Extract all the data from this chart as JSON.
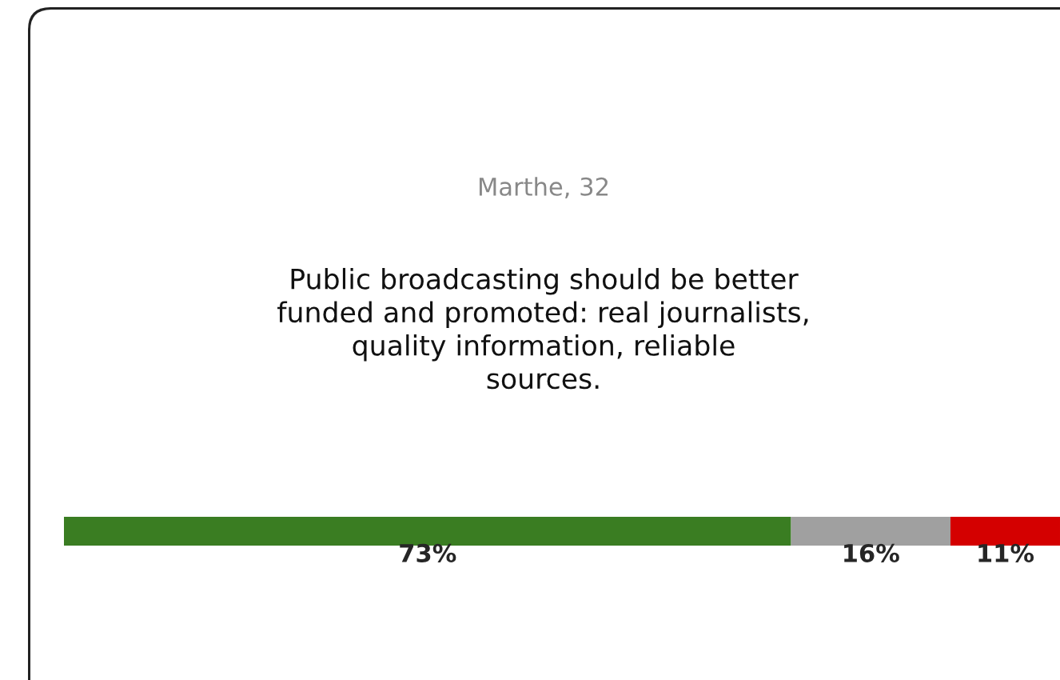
{
  "chart_data": {
    "type": "bar",
    "orientation": "horizontal",
    "stacked": true,
    "title": "Marthe, 32",
    "subtitle": "Public broadcasting should be better\nfunded and promoted: real journalists,\nquality information, reliable\nsources.",
    "categories": [
      null
    ],
    "series": [
      {
        "color": "#3a7d22",
        "values": [
          73
        ],
        "value_labels": [
          "73%"
        ]
      },
      {
        "color": "#a0a0a0",
        "values": [
          16
        ],
        "value_labels": [
          "16%"
        ]
      },
      {
        "color": "#d40000",
        "values": [
          11
        ],
        "value_labels": [
          "11%"
        ]
      }
    ],
    "xlim": [
      0,
      100
    ],
    "tick_labels": false
  }
}
